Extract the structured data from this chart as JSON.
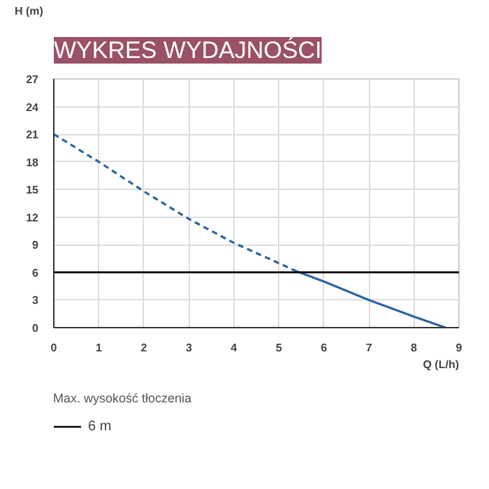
{
  "chart_data": {
    "type": "line",
    "title": "WYKRES WYDAJNOŚCI",
    "xlabel": "Q (L/h)",
    "ylabel": "H (m)",
    "series": [
      {
        "color": "#2a65a0",
        "line_style": "dashed",
        "x": [
          0,
          1,
          2,
          3,
          4,
          5,
          5.4
        ],
        "values": [
          21,
          18,
          14.8,
          11.8,
          9.2,
          7,
          6.1
        ]
      },
      {
        "color": "#2a65a0",
        "line_style": "solid",
        "x": [
          5.4,
          6,
          7,
          8,
          8.7
        ],
        "values": [
          6.1,
          5,
          3,
          1.2,
          0
        ]
      }
    ],
    "xlim": [
      0,
      9
    ],
    "ylim": [
      0,
      27
    ],
    "xticks": [
      0,
      1,
      2,
      3,
      4,
      5,
      6,
      7,
      8,
      9
    ],
    "yticks": [
      0,
      3,
      6,
      9,
      12,
      15,
      18,
      21,
      24,
      27
    ],
    "grid": true,
    "legend": "bottom left",
    "legend_title": "Max. wysokość tłoczenia",
    "ref_lines": [
      {
        "axis": "y",
        "value": 6,
        "label": "6 m",
        "color": "#000000"
      }
    ]
  }
}
